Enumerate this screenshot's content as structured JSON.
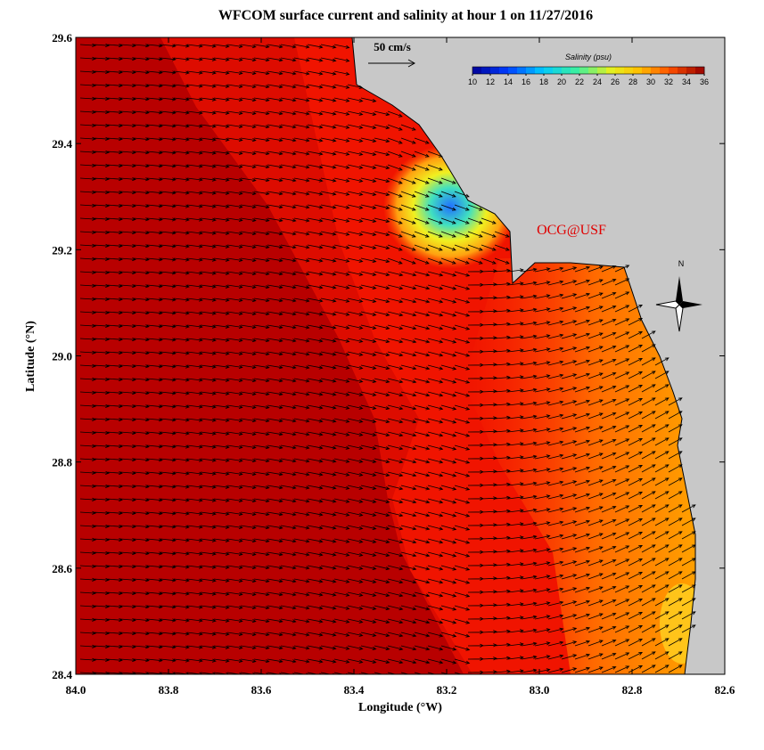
{
  "title": "WFCOM surface current and salinity at hour 1 on 11/27/2016",
  "x_axis": {
    "label": "Longitude (°W)",
    "lim": [
      84,
      82.6
    ],
    "ticks": [
      {
        "value": 84,
        "label": "84.0"
      },
      83.8,
      83.6,
      83.4,
      83.2,
      {
        "value": 83,
        "label": "83.0"
      },
      82.8,
      82.6
    ]
  },
  "y_axis": {
    "label": "Latitude (°N)",
    "lim": [
      28.4,
      29.6
    ],
    "ticks": [
      28.4,
      28.6,
      28.8,
      {
        "value": 29,
        "label": "29.0"
      },
      29.2,
      29.4,
      29.6
    ]
  },
  "colorbar": {
    "label": "Salinity (psu)",
    "lim": [
      10,
      36
    ],
    "ticks": [
      10,
      12,
      14,
      16,
      18,
      20,
      22,
      24,
      26,
      28,
      30,
      32,
      34,
      36
    ]
  },
  "scale_label": "50 cm/s",
  "credit": "OCG@USF",
  "compass_label": "N"
}
